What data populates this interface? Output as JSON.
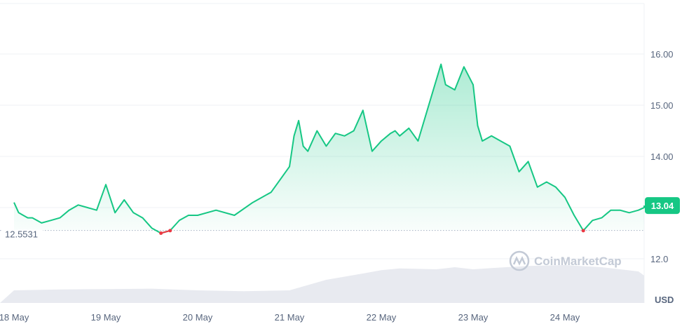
{
  "chart_data": {
    "type": "area",
    "x_labels": [
      "18 May",
      "19 May",
      "20 May",
      "21 May",
      "22 May",
      "23 May",
      "24 May"
    ],
    "y_ticks": [
      "12.0",
      "13.00",
      "14.00",
      "15.00",
      "16.00"
    ],
    "ylim": [
      11.0,
      17.0
    ],
    "baseline": {
      "value": 12.5531,
      "label": "12.5531"
    },
    "current_price": {
      "value": 13.04,
      "label": "13.04"
    },
    "currency_label": "USD",
    "watermark": "CoinMarketCap",
    "grid": true,
    "colors": {
      "up": "#16c784",
      "down": "#ea3943",
      "grid": "#eff2f5",
      "volume": "#e5e8ee",
      "text": "#58667e"
    },
    "series": [
      {
        "x": [
          0.0,
          0.05,
          0.1,
          0.15,
          0.2,
          0.3,
          0.4,
          0.5,
          0.6,
          0.7,
          0.8,
          0.9,
          1.0,
          1.1,
          1.2,
          1.3,
          1.4,
          1.5,
          1.6,
          1.7,
          1.8,
          1.9,
          2.0,
          2.2,
          2.4,
          2.6,
          2.8,
          3.0,
          3.05,
          3.1,
          3.15,
          3.2,
          3.3,
          3.4,
          3.5,
          3.6,
          3.7,
          3.8,
          3.9,
          4.0,
          4.1,
          4.15,
          4.2,
          4.3,
          4.4,
          4.5,
          4.6,
          4.65,
          4.7,
          4.8,
          4.9,
          5.0,
          5.05,
          5.1,
          5.2,
          5.3,
          5.4,
          5.5,
          5.6,
          5.7,
          5.8,
          5.9,
          6.0,
          6.1,
          6.2,
          6.3,
          6.4,
          6.5,
          6.6,
          6.7,
          6.8,
          6.9,
          7.0,
          7.1,
          7.2,
          7.3,
          7.4,
          7.5,
          7.6,
          7.67
        ],
        "y": [
          13.1,
          12.9,
          12.85,
          12.8,
          12.8,
          12.7,
          12.75,
          12.8,
          12.95,
          13.05,
          13.0,
          12.95,
          13.45,
          12.9,
          13.15,
          12.9,
          12.8,
          12.6,
          12.5,
          12.55,
          12.75,
          12.85,
          12.85,
          12.95,
          12.85,
          13.1,
          13.3,
          13.8,
          14.4,
          14.7,
          14.2,
          14.1,
          14.5,
          14.2,
          14.45,
          14.4,
          14.5,
          14.9,
          14.1,
          14.3,
          14.45,
          14.5,
          14.4,
          14.55,
          14.3,
          14.9,
          15.5,
          15.8,
          15.4,
          15.3,
          15.75,
          15.4,
          14.6,
          14.3,
          14.4,
          14.3,
          14.2,
          13.7,
          13.9,
          13.4,
          13.5,
          13.4,
          13.2,
          12.85,
          12.55,
          12.75,
          12.8,
          12.95,
          12.95,
          12.9,
          12.95,
          13.0,
          13.0,
          13.0,
          13.0,
          13.0,
          13.0,
          13.0,
          13.0,
          13.04
        ]
      },
      {
        "name": "Volume",
        "x": [
          0.0,
          0.5,
          1.0,
          1.5,
          2.0,
          2.5,
          3.0,
          3.4,
          3.8,
          4.0,
          4.2,
          4.6,
          4.8,
          5.0,
          5.2,
          5.6,
          6.0,
          6.4,
          6.8,
          7.2,
          7.6
        ],
        "y": [
          0.3,
          0.32,
          0.33,
          0.34,
          0.3,
          0.28,
          0.3,
          0.55,
          0.7,
          0.78,
          0.82,
          0.8,
          0.85,
          0.8,
          0.83,
          0.88,
          0.9,
          0.85,
          0.75,
          0.65,
          0.55
        ]
      }
    ]
  }
}
